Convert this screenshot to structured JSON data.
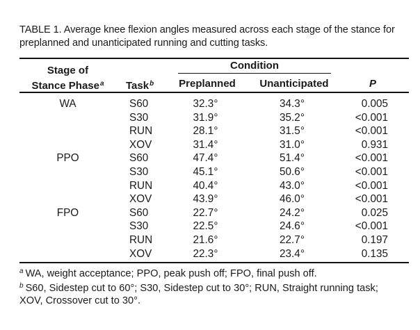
{
  "table": {
    "caption_line1": "TABLE 1. Average knee flexion angles measured across each stage of the stance for",
    "caption_line2": "preplanned and unanticipated running and cutting tasks.",
    "headers": {
      "stage_line1": "Stage of",
      "stage_line2": "Stance Phase",
      "stage_sup": "a",
      "task": "Task",
      "task_sup": "b",
      "condition": "Condition",
      "preplanned": "Preplanned",
      "unanticipated": "Unanticipated",
      "p": "P"
    },
    "rows": [
      {
        "stage": "WA",
        "task": "S60",
        "pre": "32.3°",
        "unant": "34.3°",
        "p": "0.005"
      },
      {
        "stage": "",
        "task": "S30",
        "pre": "31.9°",
        "unant": "35.2°",
        "p": "<0.001"
      },
      {
        "stage": "",
        "task": "RUN",
        "pre": "28.1°",
        "unant": "31.5°",
        "p": "<0.001"
      },
      {
        "stage": "",
        "task": "XOV",
        "pre": "31.4°",
        "unant": "31.0°",
        "p": "0.931"
      },
      {
        "stage": "PPO",
        "task": "S60",
        "pre": "47.4°",
        "unant": "51.4°",
        "p": "<0.001"
      },
      {
        "stage": "",
        "task": "S30",
        "pre": "45.1°",
        "unant": "50.6°",
        "p": "<0.001"
      },
      {
        "stage": "",
        "task": "RUN",
        "pre": "40.4°",
        "unant": "43.0°",
        "p": "<0.001"
      },
      {
        "stage": "",
        "task": "XOV",
        "pre": "43.9°",
        "unant": "46.0°",
        "p": "<0.001"
      },
      {
        "stage": "FPO",
        "task": "S60",
        "pre": "22.7°",
        "unant": "24.2°",
        "p": "0.025"
      },
      {
        "stage": "",
        "task": "S30",
        "pre": "22.5°",
        "unant": "24.6°",
        "p": "<0.001"
      },
      {
        "stage": "",
        "task": "RUN",
        "pre": "21.6°",
        "unant": "22.7°",
        "p": "0.197"
      },
      {
        "stage": "",
        "task": "XOV",
        "pre": "22.3°",
        "unant": "23.4°",
        "p": "0.135"
      }
    ],
    "footnotes": {
      "a_marker": "a",
      "a_text": "WA, weight acceptance; PPO, peak push off; FPO, final push off.",
      "b_marker": "b",
      "b_line1": "S60, Sidestep cut to 60°; S30, Sidestep cut to 30°; RUN, Straight running task;",
      "b_line2": "XOV, Crossover cut to 30°."
    }
  }
}
